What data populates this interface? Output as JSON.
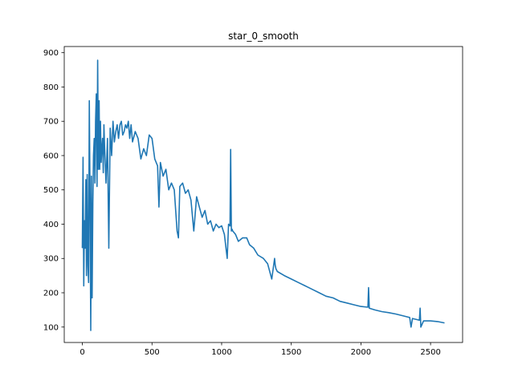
{
  "chart_data": {
    "type": "line",
    "title": "star_0_smooth",
    "xlabel": "",
    "ylabel": "",
    "xlim": [
      -130,
      2730
    ],
    "ylim": [
      55,
      918
    ],
    "x_ticks": [
      0,
      500,
      1000,
      1500,
      2000,
      2500
    ],
    "y_ticks": [
      100,
      200,
      300,
      400,
      500,
      600,
      700,
      800,
      900
    ],
    "grid": false,
    "legend": "none",
    "series": [
      {
        "color": "#1f77b4",
        "x": [
          0,
          5,
          10,
          15,
          20,
          25,
          30,
          35,
          40,
          45,
          50,
          55,
          60,
          65,
          70,
          75,
          80,
          85,
          90,
          95,
          100,
          105,
          110,
          115,
          120,
          125,
          130,
          135,
          140,
          145,
          150,
          155,
          160,
          170,
          180,
          190,
          200,
          210,
          220,
          230,
          240,
          250,
          260,
          270,
          280,
          290,
          300,
          310,
          320,
          330,
          340,
          350,
          360,
          380,
          400,
          420,
          440,
          460,
          480,
          500,
          520,
          540,
          550,
          560,
          580,
          600,
          620,
          640,
          660,
          680,
          690,
          700,
          720,
          740,
          760,
          780,
          800,
          820,
          840,
          860,
          880,
          900,
          920,
          940,
          960,
          980,
          1000,
          1020,
          1040,
          1050,
          1060,
          1065,
          1070,
          1075,
          1080,
          1100,
          1120,
          1150,
          1180,
          1200,
          1230,
          1260,
          1300,
          1330,
          1360,
          1380,
          1385,
          1390,
          1400,
          1450,
          1500,
          1550,
          1600,
          1650,
          1700,
          1750,
          1800,
          1850,
          1900,
          1950,
          2000,
          2050,
          2055,
          2060,
          2100,
          2150,
          2200,
          2250,
          2300,
          2350,
          2360,
          2370,
          2400,
          2420,
          2425,
          2430,
          2450,
          2500,
          2550,
          2600
        ],
        "y": [
          330,
          595,
          220,
          410,
          330,
          530,
          250,
          545,
          280,
          230,
          760,
          470,
          90,
          540,
          185,
          460,
          600,
          650,
          520,
          700,
          780,
          510,
          878,
          560,
          760,
          560,
          700,
          580,
          620,
          650,
          550,
          690,
          620,
          520,
          650,
          330,
          680,
          600,
          700,
          640,
          670,
          690,
          650,
          690,
          700,
          660,
          670,
          690,
          680,
          700,
          650,
          690,
          640,
          670,
          650,
          590,
          620,
          600,
          660,
          650,
          590,
          570,
          450,
          580,
          540,
          560,
          500,
          520,
          500,
          380,
          360,
          510,
          520,
          490,
          500,
          470,
          380,
          480,
          450,
          420,
          440,
          400,
          410,
          380,
          400,
          390,
          395,
          370,
          300,
          400,
          395,
          618,
          380,
          385,
          380,
          370,
          350,
          360,
          360,
          340,
          330,
          310,
          300,
          285,
          240,
          300,
          280,
          270,
          262,
          250,
          240,
          230,
          220,
          210,
          200,
          190,
          185,
          175,
          170,
          165,
          160,
          158,
          215,
          155,
          150,
          145,
          142,
          138,
          133,
          128,
          100,
          125,
          122,
          120,
          155,
          100,
          118,
          118,
          116,
          112
        ]
      }
    ]
  }
}
